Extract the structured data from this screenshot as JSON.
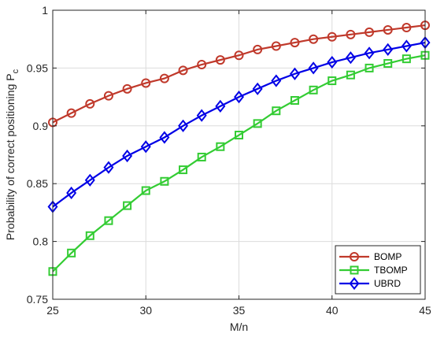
{
  "chart_data": {
    "type": "line",
    "xlabel": "M/n",
    "ylabel": "Probability of correct positioning P",
    "ylabel_subscript": "c",
    "xlim": [
      25,
      45
    ],
    "ylim": [
      0.75,
      1
    ],
    "xticks": [
      25,
      30,
      35,
      40,
      45
    ],
    "xtick_labels": [
      "25",
      "30",
      "35",
      "40",
      "45"
    ],
    "yticks": [
      0.75,
      0.8,
      0.85,
      0.9,
      0.95,
      1
    ],
    "ytick_labels": [
      "0.75",
      "0.8",
      "0.85",
      "0.9",
      "0.95",
      "1"
    ],
    "grid": true,
    "legend_position": "bottom-right",
    "x": [
      25,
      26,
      27,
      28,
      29,
      30,
      31,
      32,
      33,
      34,
      35,
      36,
      37,
      38,
      39,
      40,
      41,
      42,
      43,
      44,
      45
    ],
    "series": [
      {
        "name": "BOMP",
        "color": "#c0392b",
        "marker": "circle",
        "values": [
          0.903,
          0.911,
          0.919,
          0.926,
          0.932,
          0.937,
          0.941,
          0.948,
          0.953,
          0.957,
          0.961,
          0.966,
          0.969,
          0.972,
          0.975,
          0.977,
          0.979,
          0.981,
          0.983,
          0.985,
          0.987
        ]
      },
      {
        "name": "TBOMP",
        "color": "#33cc33",
        "marker": "square",
        "values": [
          0.774,
          0.79,
          0.805,
          0.818,
          0.831,
          0.844,
          0.852,
          0.862,
          0.873,
          0.882,
          0.892,
          0.902,
          0.913,
          0.922,
          0.931,
          0.939,
          0.944,
          0.95,
          0.954,
          0.958,
          0.961
        ]
      },
      {
        "name": "UBRD",
        "color": "#0000e6",
        "marker": "diamond",
        "values": [
          0.83,
          0.842,
          0.853,
          0.864,
          0.874,
          0.882,
          0.89,
          0.9,
          0.909,
          0.917,
          0.925,
          0.932,
          0.939,
          0.945,
          0.95,
          0.955,
          0.959,
          0.963,
          0.966,
          0.969,
          0.972
        ]
      }
    ]
  }
}
